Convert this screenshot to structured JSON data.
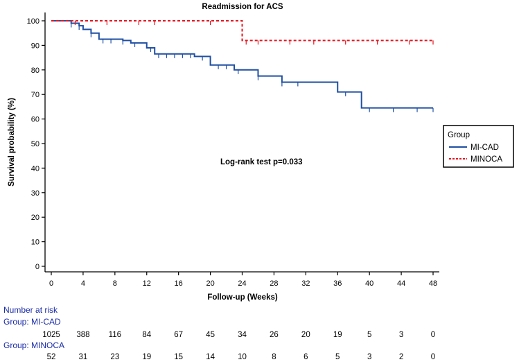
{
  "chart_data": {
    "type": "line",
    "title": "Readmission for ACS",
    "xlabel": "Follow-up (Weeks)",
    "ylabel": "Survival probability (%)",
    "xlim": [
      0,
      48
    ],
    "ylim": [
      0,
      100
    ],
    "xticks": [
      0,
      4,
      8,
      12,
      16,
      20,
      24,
      28,
      32,
      36,
      40,
      44,
      48
    ],
    "yticks": [
      0,
      10,
      20,
      30,
      40,
      50,
      60,
      70,
      80,
      90,
      100
    ],
    "grid": false,
    "annotation": "Log-rank test p=0.033",
    "legend": {
      "title": "Group",
      "position": "right",
      "entries": [
        "MI-CAD",
        "MINOCA"
      ]
    },
    "series": [
      {
        "name": "MI-CAD",
        "color": "#1f4fa3",
        "style": "solid",
        "steps": [
          [
            0,
            100
          ],
          [
            2.5,
            99
          ],
          [
            3.5,
            98
          ],
          [
            4,
            96.5
          ],
          [
            5,
            95
          ],
          [
            6,
            92.5
          ],
          [
            9,
            92
          ],
          [
            10,
            91
          ],
          [
            12,
            89
          ],
          [
            13,
            86.5
          ],
          [
            18,
            85.5
          ],
          [
            20,
            82
          ],
          [
            23,
            80
          ],
          [
            26,
            77.5
          ],
          [
            29,
            75
          ],
          [
            36,
            71
          ],
          [
            39,
            64.5
          ],
          [
            48,
            64.5
          ]
        ],
        "censor_ticks": [
          2.5,
          3.5,
          5,
          6.5,
          7.5,
          9,
          10.5,
          12.5,
          13.5,
          14.5,
          15.5,
          16.5,
          17.5,
          19,
          21,
          22,
          23.5,
          26,
          29,
          31,
          37,
          40,
          43,
          46,
          48
        ]
      },
      {
        "name": "MINOCA",
        "color": "#e8141e",
        "style": "dashed",
        "steps": [
          [
            0,
            100
          ],
          [
            24,
            92
          ],
          [
            48,
            92
          ]
        ],
        "censor_ticks": [
          3,
          7,
          11,
          13,
          20,
          24.5,
          26,
          30,
          33,
          37,
          41,
          45,
          48
        ]
      }
    ]
  },
  "risk_table": {
    "heading": "Number at risk",
    "groups": [
      {
        "label": "Group: MI-CAD",
        "values": [
          "1025",
          "388",
          "116",
          "84",
          "67",
          "45",
          "34",
          "26",
          "20",
          "19",
          "5",
          "3",
          "0"
        ]
      },
      {
        "label": "Group: MINOCA",
        "values": [
          "52",
          "31",
          "23",
          "19",
          "15",
          "14",
          "10",
          "8",
          "6",
          "5",
          "3",
          "2",
          "0"
        ]
      }
    ]
  }
}
